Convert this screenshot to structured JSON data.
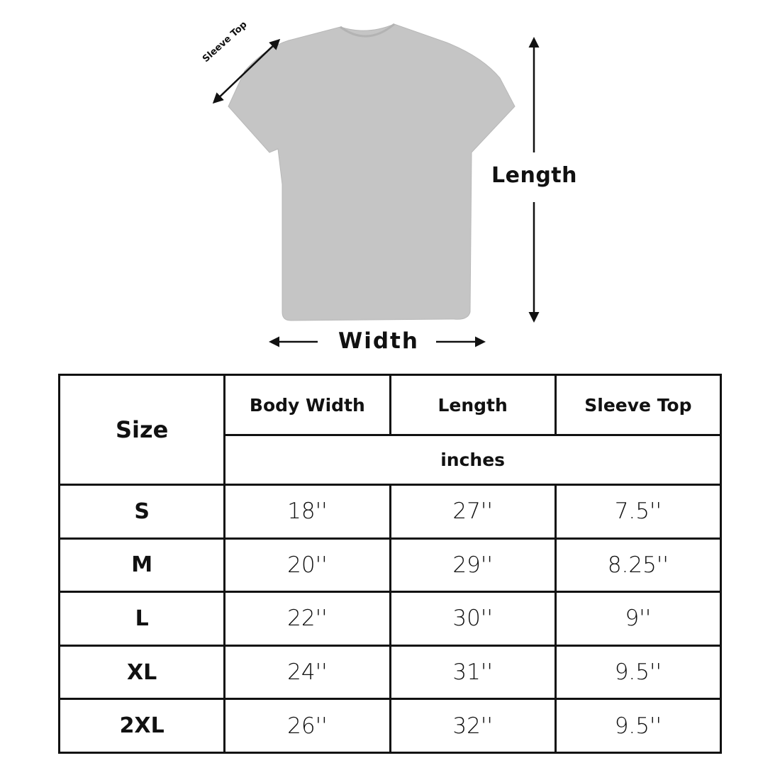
{
  "diagram": {
    "sleeve_label": "Sleeve Top",
    "length_label": "Length",
    "width_label": "Width",
    "shirt_color": "#c5c5c5"
  },
  "table": {
    "headers": {
      "size": "Size",
      "body_width": "Body Width",
      "length": "Length",
      "sleeve_top": "Sleeve Top",
      "unit": "inches"
    },
    "rows": [
      {
        "size": "S",
        "body_width": "18''",
        "length": "27''",
        "sleeve_top": "7.5''"
      },
      {
        "size": "M",
        "body_width": "20''",
        "length": "29''",
        "sleeve_top": "8.25''"
      },
      {
        "size": "L",
        "body_width": "22''",
        "length": "30''",
        "sleeve_top": "9''"
      },
      {
        "size": "XL",
        "body_width": "24''",
        "length": "31''",
        "sleeve_top": "9.5''"
      },
      {
        "size": "2XL",
        "body_width": "26''",
        "length": "32''",
        "sleeve_top": "9.5''"
      }
    ]
  }
}
